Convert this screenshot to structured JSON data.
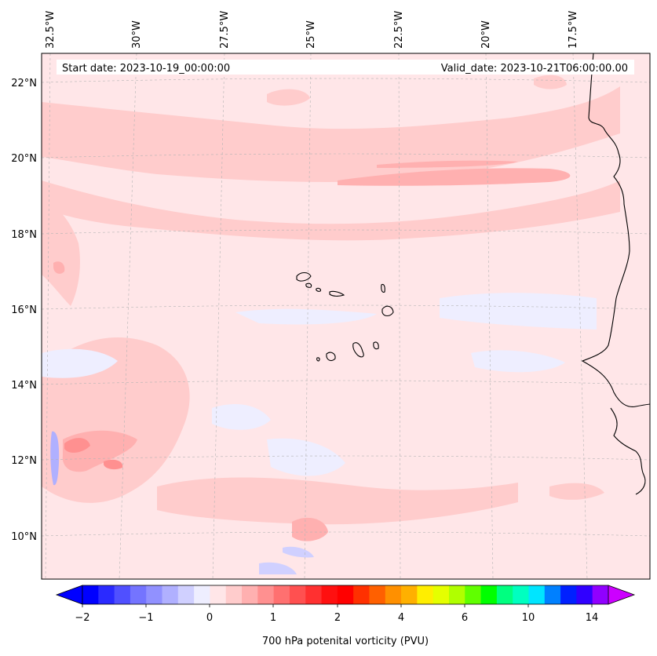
{
  "header": {
    "start_date": "Start date: 2023-10-19_00:00:00",
    "valid_date": "Valid_date: 2023-10-21T06:00:00.00"
  },
  "map": {
    "background_color": "#ffe6e8",
    "longitude_labels": [
      "32.5°W",
      "30°W",
      "27.5°W",
      "25°W",
      "22.5°W",
      "20°W",
      "17.5°W"
    ],
    "latitude_labels": [
      "22°N",
      "20°N",
      "18°N",
      "16°N",
      "14°N",
      "12°N",
      "10°N"
    ]
  },
  "colorbar": {
    "label": "700 hPa potenital vorticity (PVU)",
    "tick_labels": [
      "−2",
      "−1",
      "0",
      "1",
      "2",
      "4",
      "6",
      "10",
      "14"
    ],
    "colors": [
      "#0000ff",
      "#2a2aff",
      "#5050ff",
      "#7474ff",
      "#9191ff",
      "#b0b0ff",
      "#d0d0ff",
      "#eeeeff",
      "#ffe6e8",
      "#ffcccc",
      "#ffb0b0",
      "#ff9090",
      "#ff7070",
      "#ff5050",
      "#ff3030",
      "#ff1010",
      "#ff0000",
      "#ff3000",
      "#ff6000",
      "#ff9000",
      "#ffb000",
      "#ffee00",
      "#e5ff00",
      "#b0ff00",
      "#60ff00",
      "#00ff00",
      "#00ff80",
      "#00ffc0",
      "#00e5ff",
      "#0080ff",
      "#0020ff",
      "#3000ff",
      "#9000ff"
    ],
    "under_color": "#0000ff",
    "over_color": "#cc00ff"
  }
}
